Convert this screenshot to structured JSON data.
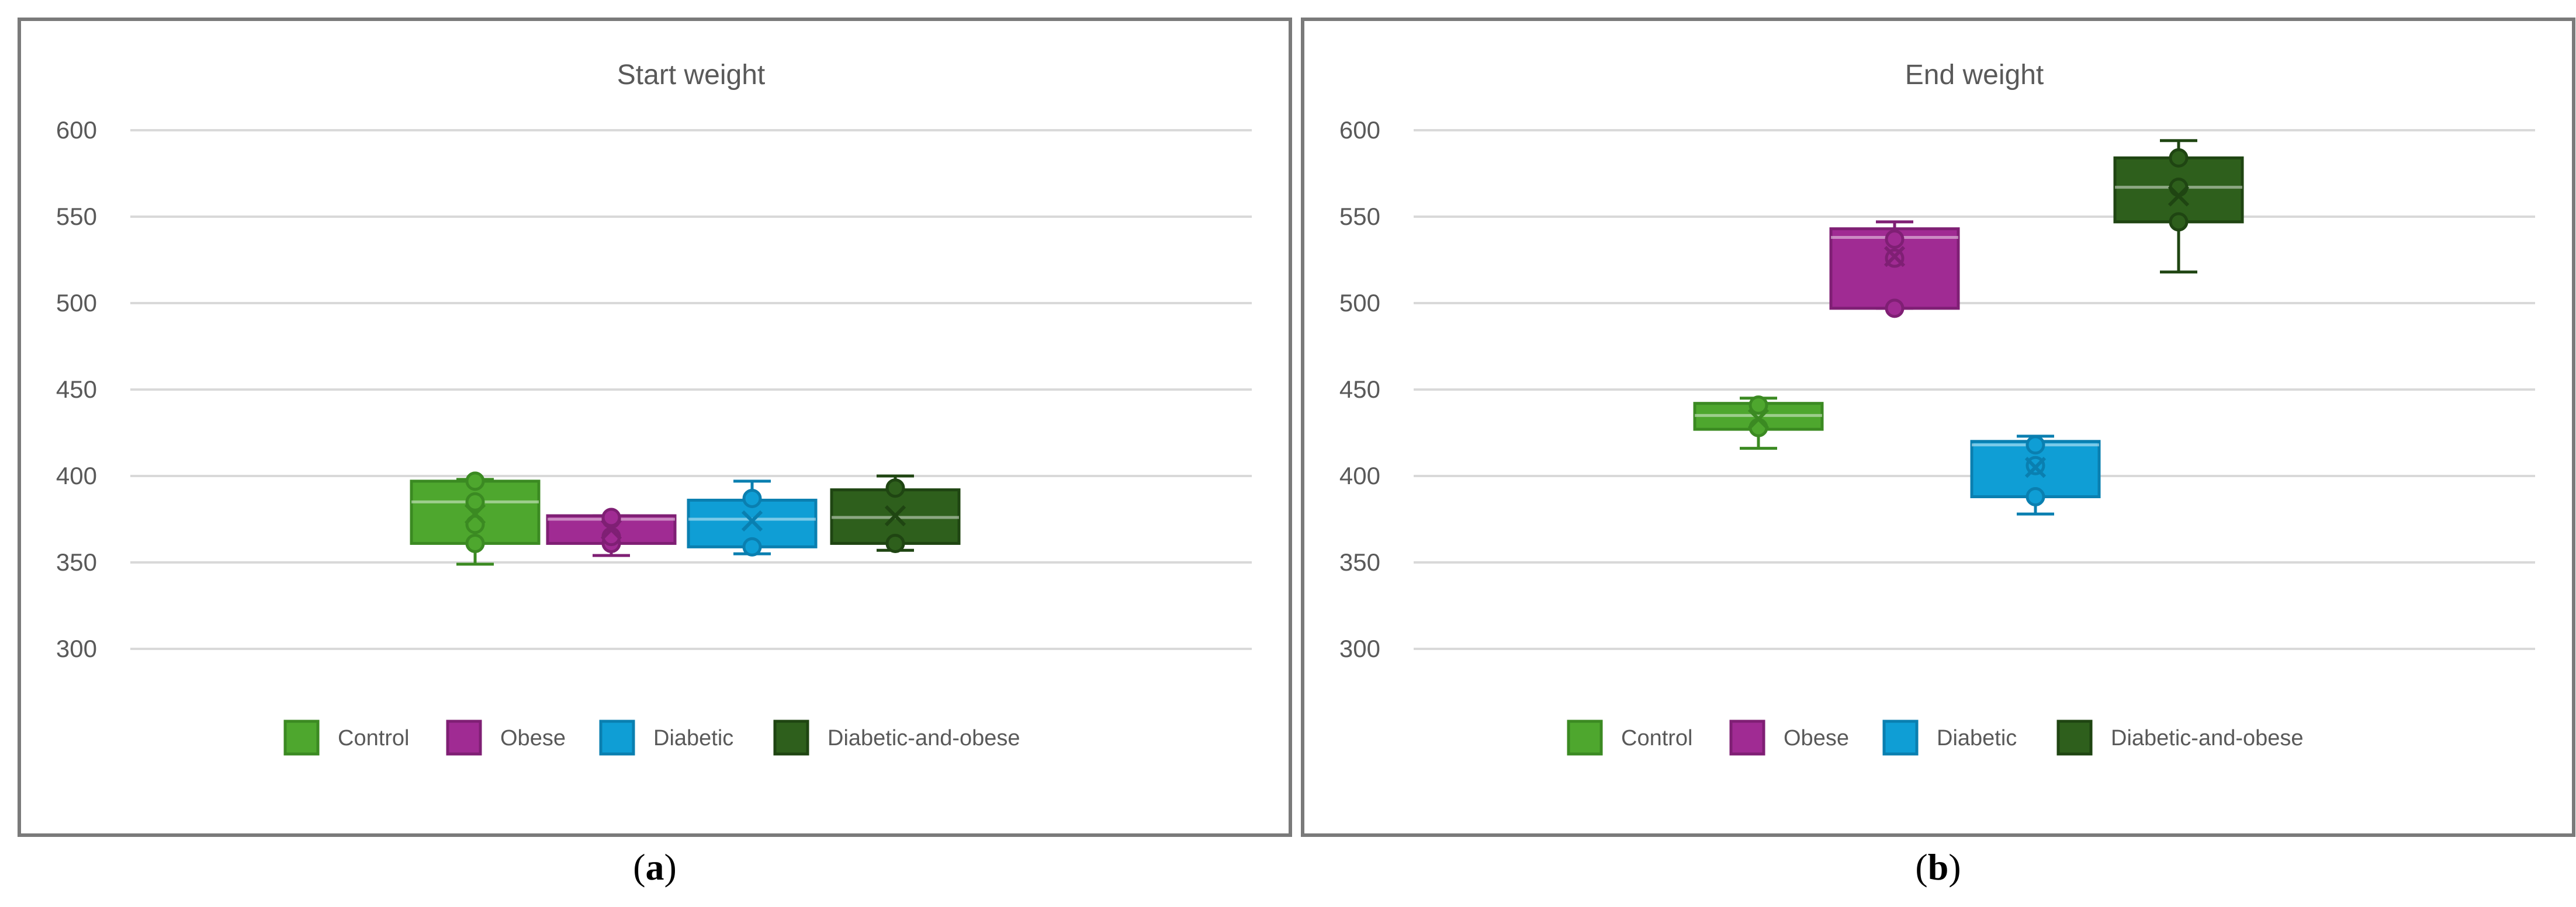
{
  "chart_data": [
    {
      "type": "box",
      "title": "Start weight",
      "ylim": [
        300,
        600
      ],
      "yticks": [
        300,
        350,
        400,
        450,
        500,
        550,
        600
      ],
      "grid": true,
      "legend_position": "bottom",
      "series": [
        {
          "name": "Control",
          "color": "#4ea72e",
          "stroke": "#3b8a22",
          "min": 349,
          "q1": 361,
          "median": 385,
          "q3": 397,
          "max": 398,
          "mean": 378,
          "points": [
            361,
            372,
            385,
            397
          ]
        },
        {
          "name": "Obese",
          "color": "#a02b93",
          "stroke": "#7f1f74",
          "min": 354,
          "q1": 361,
          "median": 375,
          "q3": 377,
          "max": 377,
          "mean": 369,
          "points": [
            361,
            365,
            375,
            376
          ]
        },
        {
          "name": "Diabetic",
          "color": "#0f9ed5",
          "stroke": "#0a7fb0",
          "min": 355,
          "q1": 359,
          "median": 375,
          "q3": 386,
          "max": 397,
          "mean": 374,
          "points": [
            359,
            387
          ]
        },
        {
          "name": "Diabetic-and-obese",
          "color": "#2e5f1c",
          "stroke": "#1f4512",
          "min": 357,
          "q1": 361,
          "median": 376,
          "q3": 392,
          "max": 400,
          "mean": 377,
          "points": [
            361,
            393
          ]
        }
      ]
    },
    {
      "type": "box",
      "title": "End weight",
      "ylim": [
        300,
        600
      ],
      "yticks": [
        300,
        350,
        400,
        450,
        500,
        550,
        600
      ],
      "grid": true,
      "legend_position": "bottom",
      "series": [
        {
          "name": "Control",
          "color": "#4ea72e",
          "stroke": "#3b8a22",
          "min": 416,
          "q1": 427,
          "median": 435,
          "q3": 442,
          "max": 445,
          "mean": 433,
          "points": [
            428,
            441
          ]
        },
        {
          "name": "Obese",
          "color": "#a02b93",
          "stroke": "#7f1f74",
          "min": 497,
          "q1": 497,
          "median": 538,
          "q3": 543,
          "max": 547,
          "mean": 527,
          "points": [
            497,
            526,
            537
          ]
        },
        {
          "name": "Diabetic",
          "color": "#0f9ed5",
          "stroke": "#0a7fb0",
          "min": 378,
          "q1": 388,
          "median": 418,
          "q3": 420,
          "max": 423,
          "mean": 405,
          "points": [
            388,
            406,
            418
          ]
        },
        {
          "name": "Diabetic-and-obese",
          "color": "#2e5f1c",
          "stroke": "#1f4512",
          "min": 518,
          "q1": 547,
          "median": 567,
          "q3": 584,
          "max": 594,
          "mean": 562,
          "points": [
            547,
            567,
            584
          ]
        }
      ]
    }
  ],
  "captions": {
    "a_open": "(",
    "a_letter": "a",
    "a_close": ")",
    "b_open": "(",
    "b_letter": "b",
    "b_close": ")"
  }
}
